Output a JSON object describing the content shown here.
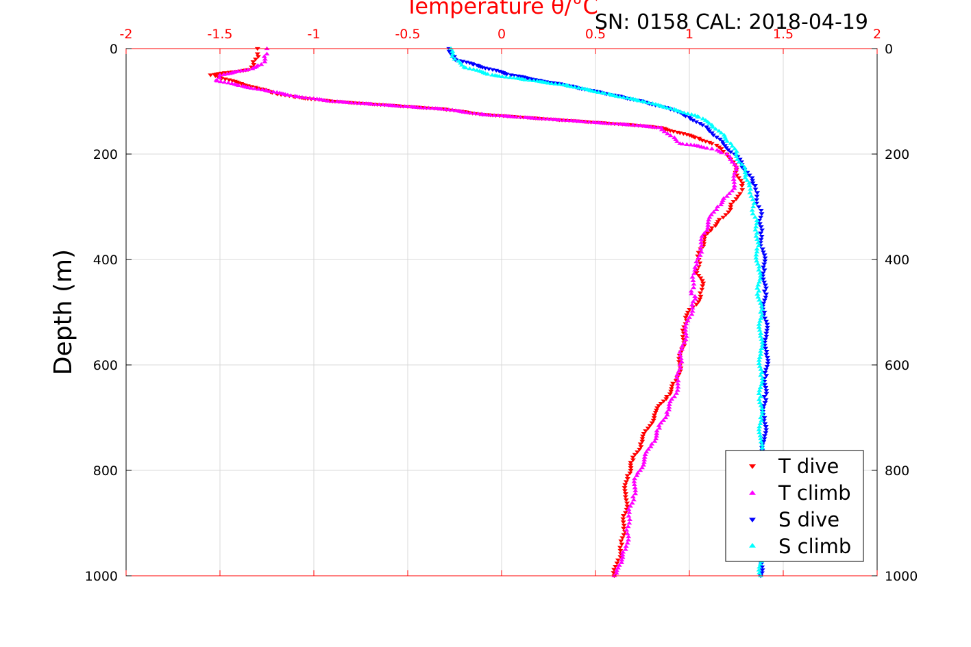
{
  "chart_data": {
    "type": "scatter",
    "title": "Temperature θ/°C",
    "subtitle": "SN: 0158  CAL: 2018-04-19",
    "xlabel": "Temperature θ/°C",
    "ylabel": "Depth (m)",
    "xlim": [
      -2,
      2
    ],
    "ylim": [
      0,
      1000
    ],
    "y_reversed": true,
    "grid": true,
    "x_axis_position": "top",
    "legend_position": "bottom-right",
    "x_ticks": [
      "-2",
      "-1.5",
      "-1",
      "-0.5",
      "0",
      "0.5",
      "1",
      "1.5",
      "2"
    ],
    "y_ticks": [
      "0",
      "200",
      "400",
      "600",
      "800",
      "1000"
    ],
    "series": [
      {
        "name": "T dive",
        "color": "#ff0000",
        "marker": "triangle-down",
        "x": [
          -1.3,
          -1.3,
          -1.31,
          -1.32,
          -1.35,
          -1.45,
          -1.55,
          -1.5,
          -1.4,
          -1.3,
          -1.2,
          -1.1,
          -0.9,
          -0.7,
          -0.5,
          -0.3,
          -0.1,
          0.1,
          0.3,
          0.5,
          0.7,
          0.85,
          0.95,
          1.05,
          1.12,
          1.17,
          1.2,
          1.22,
          1.25,
          1.28,
          1.27,
          1.25,
          1.22,
          1.18,
          1.12,
          1.08,
          1.06,
          1.05,
          1.04,
          1.07,
          1.06,
          1.02,
          0.98,
          0.97,
          0.96,
          0.95,
          0.93,
          0.88,
          0.82,
          0.78,
          0.74,
          0.7,
          0.67,
          0.66,
          0.66,
          0.65,
          0.64,
          0.62,
          0.6
        ],
        "y": [
          0,
          10,
          20,
          30,
          40,
          45,
          50,
          55,
          65,
          75,
          85,
          92,
          100,
          105,
          110,
          115,
          125,
          130,
          135,
          140,
          145,
          150,
          160,
          170,
          180,
          190,
          200,
          210,
          230,
          260,
          275,
          285,
          300,
          320,
          340,
          360,
          380,
          400,
          420,
          450,
          470,
          490,
          510,
          540,
          570,
          600,
          630,
          660,
          690,
          720,
          750,
          780,
          810,
          850,
          880,
          910,
          940,
          970,
          1000
        ]
      },
      {
        "name": "T climb",
        "color": "#ff00ff",
        "marker": "triangle-up",
        "x": [
          -1.25,
          -1.25,
          -1.26,
          -1.28,
          -1.35,
          -1.5,
          -1.52,
          -1.4,
          -1.25,
          -1.1,
          -0.9,
          -0.7,
          -0.5,
          -0.3,
          -0.1,
          0.1,
          0.3,
          0.5,
          0.7,
          0.85,
          0.9,
          0.95,
          1.05,
          1.12,
          1.16,
          1.2,
          1.22,
          1.25,
          1.24,
          1.2,
          1.15,
          1.1,
          1.08,
          1.06,
          1.04,
          1.03,
          1.02,
          1.01,
          1.03,
          1.02,
          1.0,
          0.98,
          0.96,
          0.95,
          0.94,
          0.92,
          0.88,
          0.84,
          0.8,
          0.76,
          0.72,
          0.7,
          0.68,
          0.68,
          0.67,
          0.66,
          0.64,
          0.62,
          0.6
        ],
        "y": [
          0,
          10,
          20,
          30,
          40,
          50,
          60,
          70,
          80,
          90,
          100,
          105,
          110,
          115,
          125,
          130,
          135,
          140,
          145,
          150,
          165,
          180,
          185,
          190,
          195,
          200,
          210,
          230,
          260,
          280,
          300,
          330,
          350,
          380,
          410,
          420,
          440,
          460,
          470,
          480,
          510,
          540,
          570,
          600,
          630,
          660,
          690,
          720,
          750,
          780,
          810,
          850,
          880,
          900,
          920,
          950,
          970,
          985,
          1000
        ]
      },
      {
        "name": "S dive",
        "color": "#0000ff",
        "marker": "triangle-down",
        "x": [
          -0.28,
          -0.27,
          -0.25,
          -0.15,
          0.05,
          0.2,
          0.35,
          0.55,
          0.75,
          0.9,
          1.0,
          1.07,
          1.12,
          1.18,
          1.24,
          1.28,
          1.32,
          1.35,
          1.36,
          1.37,
          1.38,
          1.38,
          1.39,
          1.4,
          1.4,
          1.4,
          1.41,
          1.41,
          1.41,
          1.4,
          1.4,
          1.4,
          1.39,
          1.39,
          1.38,
          1.38,
          1.38,
          1.38
        ],
        "y": [
          0,
          10,
          20,
          30,
          50,
          60,
          70,
          85,
          100,
          115,
          130,
          145,
          160,
          180,
          200,
          220,
          240,
          260,
          280,
          300,
          320,
          350,
          380,
          420,
          460,
          500,
          540,
          580,
          620,
          660,
          700,
          740,
          780,
          820,
          860,
          900,
          950,
          1000
        ]
      },
      {
        "name": "S climb",
        "color": "#00ffff",
        "marker": "triangle-up",
        "x": [
          -0.27,
          -0.26,
          -0.25,
          -0.2,
          -0.05,
          0.15,
          0.35,
          0.55,
          0.75,
          0.92,
          1.05,
          1.12,
          1.17,
          1.22,
          1.25,
          1.28,
          1.3,
          1.32,
          1.33,
          1.34,
          1.35,
          1.36,
          1.36,
          1.37,
          1.37,
          1.38,
          1.38,
          1.38,
          1.38,
          1.38,
          1.38,
          1.38,
          1.38,
          1.38,
          1.38,
          1.38,
          1.38,
          1.38
        ],
        "y": [
          0,
          10,
          20,
          35,
          50,
          60,
          70,
          85,
          100,
          115,
          130,
          145,
          160,
          180,
          200,
          220,
          240,
          260,
          280,
          300,
          320,
          350,
          380,
          420,
          460,
          500,
          540,
          580,
          620,
          660,
          700,
          740,
          780,
          820,
          860,
          900,
          950,
          1000
        ]
      }
    ]
  }
}
